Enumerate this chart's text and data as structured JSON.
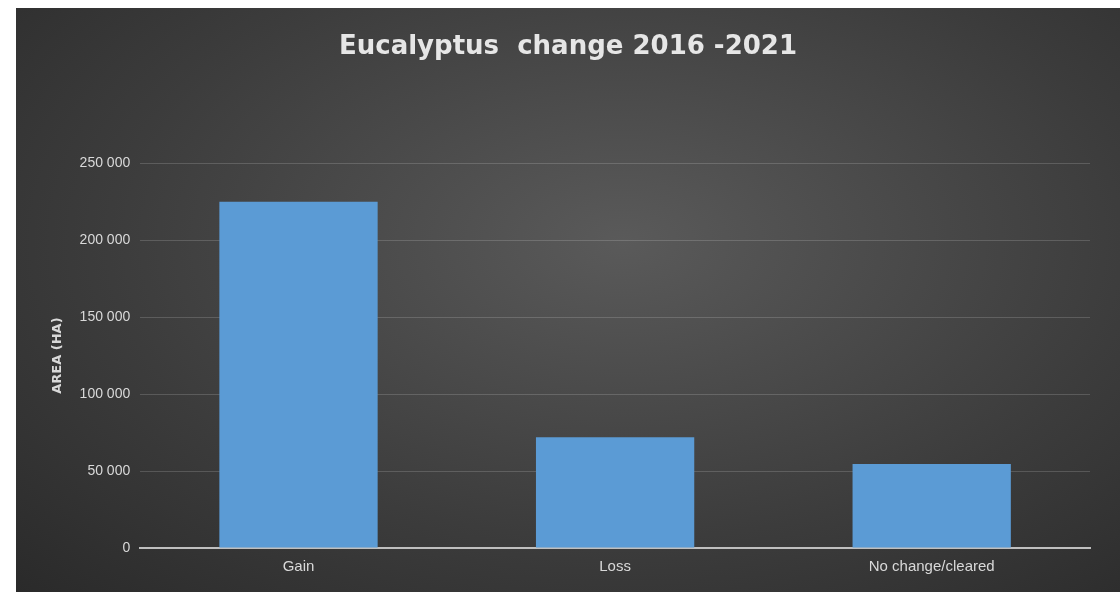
{
  "chart_data": {
    "type": "bar",
    "title": "Eucalyptus  change 2016 -2021",
    "ylabel": "AREA (HA)",
    "categories": [
      "Gain",
      "Loss",
      "No change/cleared"
    ],
    "values": [
      225000,
      72000,
      54500
    ],
    "color": "#5b9bd5",
    "ylim": [
      0,
      250000
    ],
    "yticks": [
      {
        "value": 0,
        "label": "0"
      },
      {
        "value": 50000,
        "label": "50 000"
      },
      {
        "value": 100000,
        "label": "100 000"
      },
      {
        "value": 150000,
        "label": "150 000"
      },
      {
        "value": 200000,
        "label": "200 000"
      },
      {
        "value": 250000,
        "label": "250 000"
      }
    ],
    "grid": "y",
    "legend": false
  }
}
